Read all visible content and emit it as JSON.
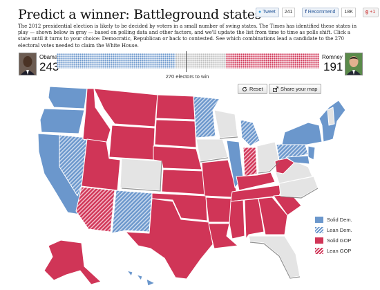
{
  "header": {
    "title": "Predict a winner: Battleground states"
  },
  "social": {
    "tweet_label": "Tweet",
    "tweet_count": "241",
    "recommend_label": "Recommend",
    "recommend_count": "18K",
    "plusone_label": "+1"
  },
  "intro": {
    "text": "The 2012 presidential election is likely to be decided by voters in a small number of swing states. The Times has identified these states in play — shown below in gray — based on polling data and other factors, and we'll update the list from time to time as polls shift. Click a state until it turns to your choice: Democratic, Republican or back to contested. See which combinations lead a candidate to the 270 electoral votes needed to claim the White House."
  },
  "tally": {
    "obama_name": "Obama",
    "obama_votes": "243",
    "romney_name": "Romney",
    "romney_votes": "191",
    "to_win_label": "270 electors to win",
    "obama_share": 243,
    "romney_share": 191,
    "tossup_share": 104,
    "dem_color": "#6b97cc",
    "gop_color": "#d03557",
    "tossup_color": "#dcdcdc"
  },
  "controls": {
    "reset_label": "Reset",
    "reset_icon": "refresh-icon",
    "share_label": "Share your map",
    "share_icon": "share-icon"
  },
  "legend": {
    "items": [
      {
        "label": "Solid Dem."
      },
      {
        "label": "Lean Dem."
      },
      {
        "label": "Solid GOP"
      },
      {
        "label": "Lean GOP"
      }
    ],
    "colors": {
      "solid_dem": "#6b97cc",
      "lean_dem": "#6b97cc",
      "solid_gop": "#d03557",
      "lean_gop": "#d03557",
      "tossup": "#e8e8e8"
    }
  }
}
